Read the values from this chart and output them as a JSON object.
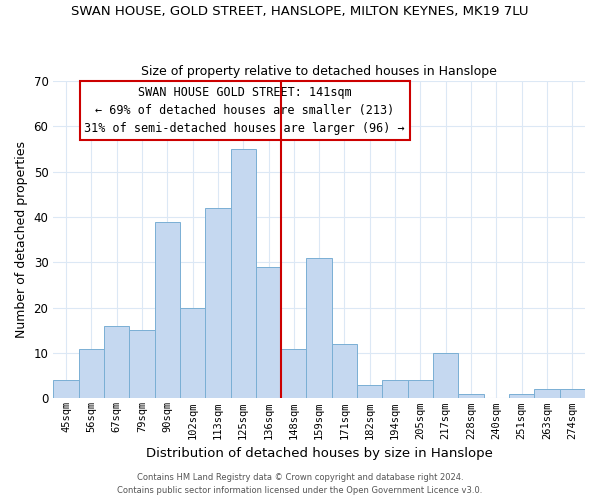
{
  "title": "SWAN HOUSE, GOLD STREET, HANSLOPE, MILTON KEYNES, MK19 7LU",
  "subtitle": "Size of property relative to detached houses in Hanslope",
  "xlabel": "Distribution of detached houses by size in Hanslope",
  "ylabel": "Number of detached properties",
  "bar_labels": [
    "45sqm",
    "56sqm",
    "67sqm",
    "79sqm",
    "90sqm",
    "102sqm",
    "113sqm",
    "125sqm",
    "136sqm",
    "148sqm",
    "159sqm",
    "171sqm",
    "182sqm",
    "194sqm",
    "205sqm",
    "217sqm",
    "228sqm",
    "240sqm",
    "251sqm",
    "263sqm",
    "274sqm"
  ],
  "bar_values": [
    4,
    11,
    16,
    15,
    39,
    20,
    42,
    55,
    29,
    11,
    31,
    12,
    3,
    4,
    4,
    10,
    1,
    0,
    1,
    2,
    2
  ],
  "bar_color": "#c5d8f0",
  "bar_edge_color": "#7aafd4",
  "grid_color": "#dce8f5",
  "vline_x": 8.5,
  "vline_color": "#cc0000",
  "annotation_title": "SWAN HOUSE GOLD STREET: 141sqm",
  "annotation_line1": "← 69% of detached houses are smaller (213)",
  "annotation_line2": "31% of semi-detached houses are larger (96) →",
  "annotation_box_color": "#ffffff",
  "annotation_box_edge": "#cc0000",
  "ylim": [
    0,
    70
  ],
  "yticks": [
    0,
    10,
    20,
    30,
    40,
    50,
    60,
    70
  ],
  "footer1": "Contains HM Land Registry data © Crown copyright and database right 2024.",
  "footer2": "Contains public sector information licensed under the Open Government Licence v3.0.",
  "title_fontsize": 9.5,
  "subtitle_fontsize": 9.0,
  "ylabel_fontsize": 9.0,
  "xlabel_fontsize": 9.5,
  "tick_fontsize": 7.5,
  "annotation_fontsize": 8.5,
  "footer_fontsize": 6.0
}
